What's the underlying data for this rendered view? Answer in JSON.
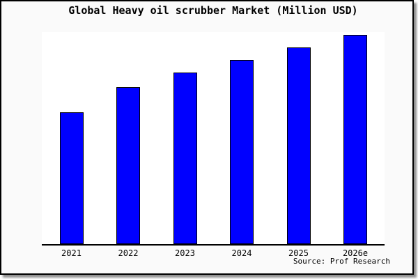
{
  "figure": {
    "source_text": "Source: Prof Research",
    "background_color": "#fafafa",
    "plot_background_color": "#ffffff",
    "border_color": "#000000",
    "shadow_color": "#8f8f8f"
  },
  "chart_data": {
    "type": "bar",
    "title": "Global Heavy oil scrubber Market (Million USD)",
    "categories": [
      "2021",
      "2022",
      "2023",
      "2024",
      "2025",
      "2026e"
    ],
    "values": [
      63,
      75,
      82,
      88,
      94,
      100
    ],
    "values_note": "Chart displays no numeric y-axis or data labels; values are relative estimates with 2026e = 100",
    "xlabel": "",
    "ylabel": "",
    "ylim": [
      0,
      101.5
    ],
    "grid": false,
    "legend": false,
    "bar_color": "#0000ff",
    "bar_border_color": "#000000",
    "axis_line_color": "#000000"
  }
}
